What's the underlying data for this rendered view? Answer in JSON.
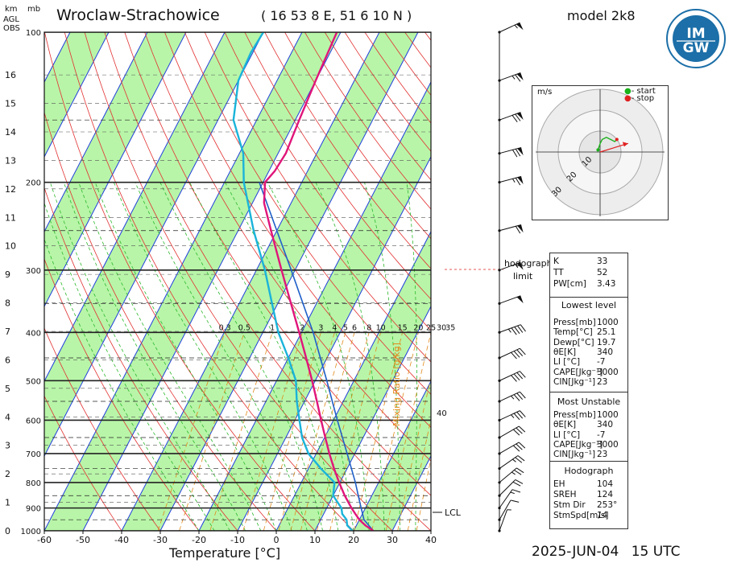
{
  "header": {
    "alt_units": [
      "km",
      "AGL",
      "OBS"
    ],
    "pressure_unit": "mb",
    "station": "Wroclaw-Strachowice",
    "coords": "( 16 53 8 E, 51 6 10 N )",
    "model": "model 2k8",
    "logo_text": "IMGW"
  },
  "footer": {
    "date": "2025-JUN-04",
    "time": "15 UTC"
  },
  "chart_data": {
    "type": "skew-t",
    "xlabel": "Temperature [°C]",
    "x_ticks": [
      -60,
      -50,
      -40,
      -30,
      -20,
      -10,
      0,
      10,
      20,
      30,
      40
    ],
    "pressure_ticks": [
      100,
      200,
      300,
      400,
      500,
      600,
      700,
      800,
      900,
      1000
    ],
    "altitude_ticks_km": [
      0,
      1,
      2,
      3,
      4,
      5,
      6,
      7,
      8,
      9,
      10,
      11,
      12,
      13,
      14,
      15,
      16
    ],
    "mixing_ratio_label": "Mixing Ratio [g/kg]",
    "mixing_ratio_ticks": [
      "0.3",
      "0.5",
      "1",
      "2",
      "3",
      "4",
      "5",
      "6",
      "8",
      "10",
      "15",
      "20",
      "25",
      "30",
      "35"
    ],
    "mixing_ratio_extra": "40",
    "lcl_label": "LCL",
    "hodograph_limit_label": [
      "hodograph",
      "limit"
    ],
    "temperature_profile": [
      {
        "p": 1000,
        "t": 25.1
      },
      {
        "p": 975,
        "t": 22.3
      },
      {
        "p": 950,
        "t": 20.0
      },
      {
        "p": 925,
        "t": 18.2
      },
      {
        "p": 900,
        "t": 16.4
      },
      {
        "p": 850,
        "t": 13.0
      },
      {
        "p": 800,
        "t": 9.8
      },
      {
        "p": 750,
        "t": 6.6
      },
      {
        "p": 700,
        "t": 3.4
      },
      {
        "p": 650,
        "t": 0.2
      },
      {
        "p": 600,
        "t": -3.2
      },
      {
        "p": 550,
        "t": -6.8
      },
      {
        "p": 500,
        "t": -10.8
      },
      {
        "p": 450,
        "t": -15.4
      },
      {
        "p": 400,
        "t": -20.6
      },
      {
        "p": 350,
        "t": -26.6
      },
      {
        "p": 300,
        "t": -33.5
      },
      {
        "p": 250,
        "t": -41.5
      },
      {
        "p": 220,
        "t": -47.0
      },
      {
        "p": 200,
        "t": -49.5
      },
      {
        "p": 190,
        "t": -48.5
      },
      {
        "p": 175,
        "t": -48.0
      },
      {
        "p": 150,
        "t": -49.0
      },
      {
        "p": 125,
        "t": -50.0
      },
      {
        "p": 100,
        "t": -51.0
      }
    ],
    "dewpoint_profile": [
      {
        "p": 1000,
        "td": 19.7
      },
      {
        "p": 975,
        "td": 17.6
      },
      {
        "p": 950,
        "td": 16.7
      },
      {
        "p": 925,
        "td": 14.8
      },
      {
        "p": 900,
        "td": 13.8
      },
      {
        "p": 850,
        "td": 10.0
      },
      {
        "p": 800,
        "td": 8.6
      },
      {
        "p": 750,
        "td": 3.2
      },
      {
        "p": 700,
        "td": -2.0
      },
      {
        "p": 650,
        "td": -5.8
      },
      {
        "p": 600,
        "td": -8.8
      },
      {
        "p": 550,
        "td": -12.0
      },
      {
        "p": 500,
        "td": -15.0
      },
      {
        "p": 450,
        "td": -20.0
      },
      {
        "p": 400,
        "td": -26.0
      },
      {
        "p": 350,
        "td": -31.5
      },
      {
        "p": 300,
        "td": -37.8
      },
      {
        "p": 250,
        "td": -46.0
      },
      {
        "p": 200,
        "td": -55.0
      },
      {
        "p": 175,
        "td": -59.0
      },
      {
        "p": 150,
        "td": -66.0
      },
      {
        "p": 125,
        "td": -70.0
      },
      {
        "p": 110,
        "td": -70.5
      },
      {
        "p": 100,
        "td": -70.0
      }
    ],
    "parcel_profile": [
      {
        "p": 1000,
        "t": 25.1
      },
      {
        "p": 950,
        "t": 21.2
      },
      {
        "p": 900,
        "t": 18.9
      },
      {
        "p": 850,
        "t": 16.5
      },
      {
        "p": 800,
        "t": 14.0
      },
      {
        "p": 700,
        "t": 8.0
      },
      {
        "p": 600,
        "t": 1.0
      },
      {
        "p": 500,
        "t": -7.0
      },
      {
        "p": 400,
        "t": -17.0
      },
      {
        "p": 300,
        "t": -31.0
      },
      {
        "p": 250,
        "t": -40.0
      },
      {
        "p": 200,
        "t": -51.0
      }
    ],
    "wind_barbs": [
      {
        "p": 1000,
        "dir": 200,
        "spd": 5
      },
      {
        "p": 950,
        "dir": 210,
        "spd": 10
      },
      {
        "p": 900,
        "dir": 215,
        "spd": 15
      },
      {
        "p": 850,
        "dir": 225,
        "spd": 20
      },
      {
        "p": 800,
        "dir": 230,
        "spd": 25
      },
      {
        "p": 750,
        "dir": 235,
        "spd": 25
      },
      {
        "p": 700,
        "dir": 240,
        "spd": 30
      },
      {
        "p": 650,
        "dir": 240,
        "spd": 30
      },
      {
        "p": 600,
        "dir": 245,
        "spd": 35
      },
      {
        "p": 550,
        "dir": 245,
        "spd": 35
      },
      {
        "p": 500,
        "dir": 245,
        "spd": 40
      },
      {
        "p": 450,
        "dir": 245,
        "spd": 40
      },
      {
        "p": 400,
        "dir": 250,
        "spd": 45
      },
      {
        "p": 350,
        "dir": 250,
        "spd": 50
      },
      {
        "p": 300,
        "dir": 250,
        "spd": 55
      },
      {
        "p": 250,
        "dir": 255,
        "spd": 60
      },
      {
        "p": 200,
        "dir": 255,
        "spd": 65
      },
      {
        "p": 175,
        "dir": 255,
        "spd": 70
      },
      {
        "p": 150,
        "dir": 250,
        "spd": 70
      },
      {
        "p": 125,
        "dir": 250,
        "spd": 65
      },
      {
        "p": 100,
        "dir": 245,
        "spd": 55
      }
    ]
  },
  "hodograph": {
    "unit": "m/s",
    "legend_start": "- start",
    "legend_stop": "- stop",
    "rings": [
      10,
      20,
      30
    ],
    "points": [
      {
        "u": -1,
        "v": 1
      },
      {
        "u": 0,
        "v": 4
      },
      {
        "u": 1,
        "v": 6
      },
      {
        "u": 3,
        "v": 7
      },
      {
        "u": 5,
        "v": 6
      },
      {
        "u": 7,
        "v": 5
      },
      {
        "u": 8,
        "v": 6
      }
    ],
    "storm_vector": {
      "u": 13.4,
      "v": 4.1
    }
  },
  "indices": {
    "top": [
      {
        "label": "K",
        "value": "33"
      },
      {
        "label": "TT",
        "value": "52"
      },
      {
        "label": "PW[cm]",
        "value": "3.43"
      }
    ],
    "lowest_title": "Lowest level",
    "lowest": [
      {
        "label": "Press[mb]",
        "value": "1000"
      },
      {
        "label": "Temp[°C]",
        "value": "25.1"
      },
      {
        "label": "Dewp[°C]",
        "value": "19.7"
      },
      {
        "label": "θE[K]",
        "value": "340"
      },
      {
        "label": "LI [°C]",
        "value": "-7"
      },
      {
        "label": "CAPE[Jkg⁻¹]",
        "value": "3000"
      },
      {
        "label": "CIN[Jkg⁻¹]",
        "value": "23"
      }
    ],
    "unstable_title": "Most Unstable",
    "unstable": [
      {
        "label": "Press[mb]",
        "value": "1000"
      },
      {
        "label": "θE[K]",
        "value": "340"
      },
      {
        "label": "LI [°C]",
        "value": "-7"
      },
      {
        "label": "CAPE[Jkg⁻¹]",
        "value": "3000"
      },
      {
        "label": "CIN[Jkg⁻¹]",
        "value": "23"
      }
    ],
    "hodo_title": "Hodograph",
    "hodo": [
      {
        "label": "EH",
        "value": "104"
      },
      {
        "label": "SREH",
        "value": "124"
      },
      {
        "label": "Stm Dir",
        "value": "253°"
      },
      {
        "label": "StmSpd[m/s]",
        "value": "14"
      }
    ]
  },
  "colors": {
    "temperature": "#e0157a",
    "dewpoint": "#1ab3d9",
    "parcel": "#1f5fc8",
    "isotherm": "#1f3fdc",
    "dry_adiabat": "#e23030",
    "moist_adiabat": "#2db82d",
    "mixing_ratio": "#e08a1a",
    "band": "#b8f5a8",
    "isobar": "#222222"
  }
}
